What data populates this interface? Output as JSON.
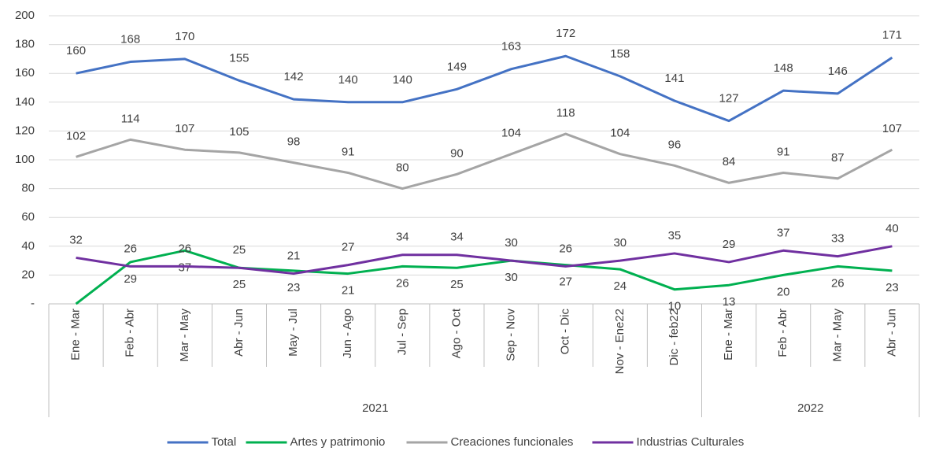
{
  "chart_data": {
    "type": "line",
    "groups": [
      {
        "name": "2021",
        "categories": [
          "Ene - Mar",
          "Feb - Abr",
          "Mar - May",
          "Abr - Jun",
          "May - Jul",
          "Jun - Ago",
          "Jul - Sep",
          "Ago - Oct",
          "Sep - Nov",
          "Oct - Dic",
          "Nov - Ene22",
          "Dic - feb22"
        ]
      },
      {
        "name": "2022",
        "categories": [
          "Ene - Mar",
          "Feb - Abr",
          "Mar - May",
          "Abr - Jun"
        ]
      }
    ],
    "series": [
      {
        "name": "Total",
        "color": "#4472c4",
        "values": [
          160,
          168,
          170,
          155,
          142,
          140,
          140,
          149,
          163,
          172,
          158,
          141,
          127,
          148,
          146,
          171
        ]
      },
      {
        "name": "Artes y patrimonio",
        "color": "#00b050",
        "values": [
          0,
          29,
          37,
          25,
          23,
          21,
          26,
          25,
          30,
          27,
          24,
          10,
          13,
          20,
          26,
          23
        ],
        "value_labels": [
          null,
          "29",
          "37",
          "25",
          "23",
          "21",
          "26",
          "25",
          "30",
          "27",
          "24",
          "10",
          "13",
          "20",
          "26",
          "23"
        ]
      },
      {
        "name": "Creaciones funcionales",
        "color": "#a5a5a5",
        "values": [
          102,
          114,
          107,
          105,
          98,
          91,
          80,
          90,
          104,
          118,
          104,
          96,
          84,
          91,
          87,
          107
        ]
      },
      {
        "name": "Industrias Culturales",
        "color": "#7030a0",
        "values": [
          32,
          26,
          26,
          25,
          21,
          27,
          34,
          34,
          30,
          26,
          30,
          35,
          29,
          37,
          33,
          40
        ]
      }
    ],
    "ylim": [
      0,
      200
    ],
    "yticks": [
      {
        "value": 0,
        "label": "-"
      },
      20,
      40,
      60,
      80,
      100,
      120,
      140,
      160,
      180,
      200
    ],
    "grid": true,
    "legend": "bottom"
  }
}
